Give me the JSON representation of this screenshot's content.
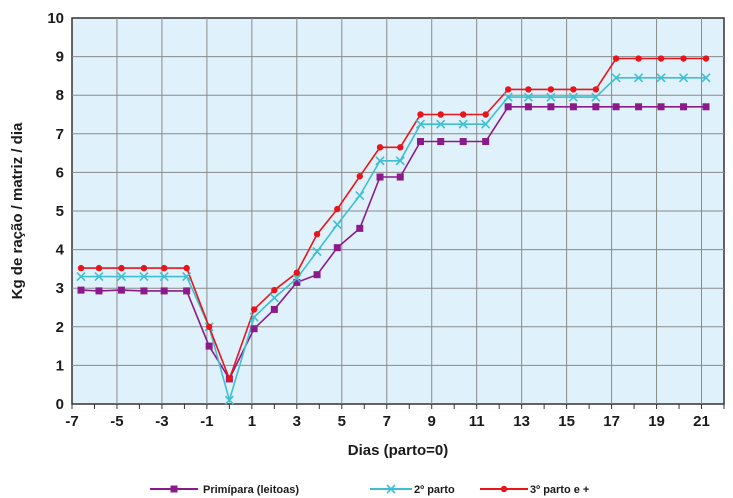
{
  "chart_data": {
    "type": "line",
    "xlabel": "Dias (parto=0)",
    "ylabel": "Kg de ração / matriz / dia",
    "xlim": [
      -7,
      22
    ],
    "ylim": [
      0,
      10
    ],
    "x_ticks": [
      -7,
      -5,
      -3,
      -1,
      1,
      3,
      5,
      7,
      9,
      11,
      13,
      15,
      17,
      19,
      21
    ],
    "x_tick_labels": [
      "-7",
      "-5",
      "-3",
      "-1",
      "1",
      "3",
      "5",
      "7",
      "9",
      "11",
      "13",
      "15",
      "17",
      "19",
      "21"
    ],
    "y_ticks": [
      0,
      1,
      2,
      3,
      4,
      5,
      6,
      7,
      8,
      9,
      10
    ],
    "y_tick_labels": [
      "0",
      "1",
      "2",
      "3",
      "4",
      "5",
      "6",
      "7",
      "8",
      "9",
      "10"
    ],
    "grid": true,
    "plot_background": "#dff1fb",
    "grid_color": "#8a8a8a",
    "legend_position": "bottom",
    "x": [
      -6.6,
      -5.8,
      -4.8,
      -3.8,
      -2.9,
      -1.9,
      -0.9,
      0,
      1.1,
      2.0,
      3.0,
      3.9,
      4.8,
      5.8,
      6.7,
      7.6,
      8.5,
      9.4,
      10.4,
      11.4,
      12.4,
      13.3,
      14.3,
      15.3,
      16.3,
      17.2,
      18.2,
      19.2,
      20.2,
      21.2
    ],
    "series": [
      {
        "name": "Primípara (leitoas)",
        "color": "#8b1a8b",
        "marker": "square",
        "values": [
          2.95,
          2.93,
          2.95,
          2.93,
          2.93,
          2.93,
          1.5,
          0.65,
          1.95,
          2.45,
          3.15,
          3.35,
          4.05,
          4.55,
          5.88,
          5.88,
          6.8,
          6.8,
          6.8,
          6.8,
          7.7,
          7.7,
          7.7,
          7.7,
          7.7,
          7.7,
          7.7,
          7.7,
          7.7,
          7.7
        ]
      },
      {
        "name": "2º parto",
        "color": "#3fbfd0",
        "marker": "x",
        "values": [
          3.3,
          3.3,
          3.3,
          3.3,
          3.3,
          3.3,
          2.0,
          0.1,
          2.25,
          2.75,
          3.25,
          3.95,
          4.65,
          5.4,
          6.3,
          6.3,
          7.25,
          7.25,
          7.25,
          7.25,
          7.95,
          7.95,
          7.95,
          7.95,
          7.95,
          8.45,
          8.45,
          8.45,
          8.45,
          8.45
        ]
      },
      {
        "name": "3º parto e +",
        "color": "#e8151b",
        "marker": "dot",
        "values": [
          3.52,
          3.52,
          3.52,
          3.52,
          3.52,
          3.52,
          2.0,
          0.65,
          2.45,
          2.95,
          3.4,
          4.4,
          5.05,
          5.9,
          6.65,
          6.65,
          7.5,
          7.5,
          7.5,
          7.5,
          8.15,
          8.15,
          8.15,
          8.15,
          8.15,
          8.95,
          8.95,
          8.95,
          8.95,
          8.95
        ]
      }
    ]
  }
}
